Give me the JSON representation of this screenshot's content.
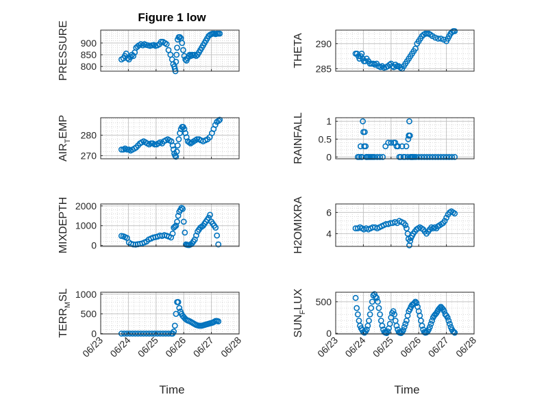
{
  "figure": {
    "title": "Figure 1 low",
    "xlabel": "Time",
    "x_tick_labels": [
      "06/23",
      "06/24",
      "06/25",
      "06/26",
      "06/27",
      "06/28"
    ],
    "marker_color": "#0072BD",
    "grid_color": "#d0d0d0"
  },
  "chart_data": [
    {
      "type": "scatter",
      "name": "PRESSURE",
      "ylabel": "PRESSURE",
      "xlim": [
        0,
        5
      ],
      "ylim": [
        780,
        955
      ],
      "yticks": [
        800,
        850,
        900
      ],
      "title": "Figure 1 low",
      "x": [
        0.75,
        0.82,
        0.87,
        0.92,
        0.97,
        1.02,
        1.08,
        1.13,
        1.18,
        1.23,
        1.28,
        1.33,
        1.38,
        1.45,
        1.52,
        1.58,
        1.65,
        1.72,
        1.78,
        1.85,
        1.92,
        1.98,
        2.05,
        2.12,
        2.18,
        2.25,
        2.32,
        2.38,
        2.45,
        2.52,
        2.58,
        2.62,
        2.66,
        2.68,
        2.7,
        2.72,
        2.74,
        2.76,
        2.78,
        2.82,
        2.86,
        2.9,
        2.94,
        2.98,
        3.02,
        3.06,
        3.1,
        3.14,
        3.18,
        3.22,
        3.26,
        3.3,
        3.35,
        3.4,
        3.45,
        3.5,
        3.55,
        3.6,
        3.65,
        3.7,
        3.75,
        3.8,
        3.85,
        3.9,
        3.95,
        4.0,
        4.05,
        4.1,
        4.15,
        4.2,
        4.25,
        4.3
      ],
      "y": [
        830,
        835,
        845,
        855,
        835,
        830,
        840,
        850,
        845,
        860,
        880,
        885,
        890,
        895,
        890,
        895,
        892,
        890,
        888,
        890,
        892,
        888,
        890,
        895,
        905,
        905,
        900,
        895,
        870,
        850,
        830,
        810,
        800,
        790,
        780,
        820,
        850,
        880,
        915,
        925,
        925,
        920,
        900,
        870,
        845,
        830,
        825,
        835,
        845,
        850,
        845,
        850,
        848,
        850,
        845,
        850,
        860,
        870,
        880,
        890,
        900,
        910,
        920,
        930,
        935,
        938,
        940,
        940,
        938,
        940,
        940,
        940
      ]
    },
    {
      "type": "scatter",
      "name": "THETA",
      "ylabel": "THETA",
      "xlim": [
        0,
        5
      ],
      "ylim": [
        284.5,
        292.7
      ],
      "yticks": [
        285,
        290
      ],
      "x": [
        0.72,
        0.77,
        0.82,
        0.86,
        0.9,
        0.94,
        0.98,
        1.02,
        1.07,
        1.12,
        1.18,
        1.24,
        1.3,
        1.36,
        1.42,
        1.48,
        1.55,
        1.62,
        1.68,
        1.75,
        1.82,
        1.88,
        1.95,
        2.0,
        2.05,
        2.1,
        2.16,
        2.22,
        2.28,
        2.34,
        2.4,
        2.46,
        2.52,
        2.58,
        2.64,
        2.7,
        2.76,
        2.82,
        2.88,
        2.94,
        3.0,
        3.06,
        3.12,
        3.18,
        3.24,
        3.3,
        3.36,
        3.42,
        3.5,
        3.6,
        3.7,
        3.8,
        3.9,
        4.0,
        4.05,
        4.1,
        4.15,
        4.2,
        4.25,
        4.3
      ],
      "y": [
        288,
        288,
        287.5,
        287,
        287.5,
        288,
        287,
        286.5,
        286.5,
        287,
        286.5,
        286,
        286,
        286,
        285.8,
        286,
        285.5,
        285.3,
        285.5,
        285.2,
        285.3,
        285.5,
        285.8,
        286,
        285.5,
        285.3,
        285.8,
        285.5,
        285.5,
        285.2,
        285,
        285.5,
        286,
        286.5,
        287,
        287.5,
        288,
        288.5,
        289,
        290,
        290.5,
        291,
        291.5,
        291.8,
        292,
        292,
        292,
        291.8,
        291.5,
        291.2,
        291,
        291,
        290.8,
        290.5,
        291,
        291.5,
        292,
        292.3,
        292.5,
        292.5
      ]
    },
    {
      "type": "scatter",
      "name": "AIR_TEMP",
      "ylabel": "AIR_TEMP",
      "xlim": [
        0,
        5
      ],
      "ylim": [
        268.5,
        288.5
      ],
      "yticks": [
        270,
        280
      ],
      "x": [
        0.75,
        0.82,
        0.88,
        0.95,
        1.02,
        1.08,
        1.15,
        1.22,
        1.28,
        1.35,
        1.42,
        1.48,
        1.55,
        1.62,
        1.68,
        1.75,
        1.82,
        1.88,
        1.95,
        2.02,
        2.08,
        2.15,
        2.22,
        2.28,
        2.35,
        2.42,
        2.48,
        2.55,
        2.6,
        2.63,
        2.66,
        2.69,
        2.72,
        2.75,
        2.78,
        2.82,
        2.86,
        2.9,
        2.94,
        2.98,
        3.02,
        3.06,
        3.1,
        3.15,
        3.2,
        3.25,
        3.3,
        3.36,
        3.42,
        3.48,
        3.55,
        3.62,
        3.7,
        3.78,
        3.86,
        3.94,
        4.02,
        4.08,
        4.14,
        4.2,
        4.26,
        4.3
      ],
      "y": [
        273,
        273,
        273.5,
        273,
        273,
        272.5,
        273,
        273.5,
        274,
        275,
        276,
        276.5,
        277,
        276.5,
        276,
        275.5,
        276,
        276,
        275.5,
        275.5,
        276,
        276.5,
        276,
        277,
        277.5,
        278,
        277.5,
        277,
        275,
        273,
        271,
        270,
        269.5,
        272,
        275,
        278,
        281,
        283,
        284,
        284,
        283,
        281,
        279,
        277,
        276.5,
        276,
        276.5,
        277,
        277.5,
        278,
        278,
        277.5,
        277,
        277.5,
        278,
        279,
        281,
        283,
        285,
        286.5,
        287,
        287.5
      ]
    },
    {
      "type": "scatter",
      "name": "RAINFALL",
      "ylabel": "RAINFALL",
      "xlim": [
        0,
        5
      ],
      "ylim": [
        -0.05,
        1.1
      ],
      "yticks": [
        0,
        0.5,
        1
      ],
      "x": [
        0.8,
        0.85,
        0.9,
        0.92,
        0.95,
        0.98,
        1.0,
        1.03,
        1.05,
        1.08,
        1.1,
        1.12,
        1.15,
        1.2,
        1.25,
        1.3,
        1.35,
        1.4,
        1.5,
        1.6,
        1.7,
        1.8,
        1.9,
        2.0,
        2.1,
        2.15,
        2.2,
        2.25,
        2.3,
        2.35,
        2.4,
        2.45,
        2.5,
        2.55,
        2.6,
        2.62,
        2.64,
        2.66,
        2.68,
        2.7,
        2.72,
        2.74,
        2.76,
        2.78,
        2.8,
        2.85,
        2.9,
        3.0,
        3.1,
        3.2,
        3.3,
        3.4,
        3.5,
        3.6,
        3.7,
        3.8,
        3.9,
        4.0,
        4.1,
        4.2,
        4.3
      ],
      "y": [
        0,
        0,
        0.3,
        0,
        0,
        1,
        0.7,
        0.3,
        0.7,
        0.3,
        0,
        0,
        0,
        0,
        0,
        0,
        0,
        0,
        0,
        0,
        0,
        0.3,
        0.4,
        0.4,
        0.4,
        0.4,
        0.3,
        0.3,
        0,
        0,
        0.3,
        0,
        0,
        0.3,
        0,
        0.5,
        0.6,
        1,
        0.6,
        0,
        0,
        0,
        0,
        0,
        0,
        0,
        0,
        0,
        0,
        0,
        0,
        0,
        0,
        0,
        0,
        0,
        0,
        0,
        0,
        0,
        0
      ]
    },
    {
      "type": "scatter",
      "name": "MIXDEPTH",
      "ylabel": "MIXDEPTH",
      "xlim": [
        0,
        5
      ],
      "ylim": [
        -50,
        2100
      ],
      "yticks": [
        0,
        1000,
        2000
      ],
      "x": [
        0.75,
        0.82,
        0.88,
        0.95,
        1.02,
        1.1,
        1.18,
        1.26,
        1.34,
        1.42,
        1.5,
        1.58,
        1.66,
        1.74,
        1.82,
        1.9,
        1.98,
        2.06,
        2.14,
        2.22,
        2.3,
        2.38,
        2.46,
        2.54,
        2.6,
        2.64,
        2.68,
        2.72,
        2.76,
        2.8,
        2.84,
        2.88,
        2.92,
        2.96,
        3.0,
        3.04,
        3.08,
        3.12,
        3.16,
        3.2,
        3.25,
        3.3,
        3.35,
        3.4,
        3.45,
        3.5,
        3.55,
        3.6,
        3.65,
        3.7,
        3.75,
        3.8,
        3.85,
        3.9,
        3.95,
        4.0,
        4.05,
        4.1,
        4.15,
        4.2,
        4.25
      ],
      "y": [
        480,
        460,
        420,
        380,
        150,
        80,
        50,
        40,
        60,
        80,
        100,
        150,
        200,
        300,
        350,
        400,
        420,
        450,
        500,
        480,
        520,
        490,
        450,
        400,
        600,
        900,
        950,
        1000,
        1200,
        1500,
        1700,
        1800,
        1900,
        1850,
        1200,
        650,
        50,
        30,
        20,
        20,
        50,
        100,
        200,
        300,
        500,
        700,
        800,
        900,
        950,
        1000,
        1100,
        1200,
        1300,
        1400,
        1550,
        1200,
        1100,
        1000,
        900,
        500,
        50
      ]
    },
    {
      "type": "scatter",
      "name": "H2OMIXRA",
      "ylabel": "H2OMIXRA",
      "xlim": [
        0,
        5
      ],
      "ylim": [
        2.8,
        6.8
      ],
      "yticks": [
        4,
        6
      ],
      "x": [
        0.72,
        0.8,
        0.88,
        0.95,
        1.02,
        1.1,
        1.18,
        1.26,
        1.34,
        1.42,
        1.5,
        1.58,
        1.66,
        1.74,
        1.82,
        1.9,
        1.98,
        2.06,
        2.14,
        2.22,
        2.3,
        2.38,
        2.46,
        2.52,
        2.56,
        2.6,
        2.63,
        2.66,
        2.69,
        2.72,
        2.76,
        2.8,
        2.86,
        2.92,
        2.98,
        3.04,
        3.1,
        3.16,
        3.22,
        3.28,
        3.34,
        3.4,
        3.46,
        3.52,
        3.58,
        3.64,
        3.7,
        3.76,
        3.82,
        3.88,
        3.94,
        4.0,
        4.06,
        4.12,
        4.18,
        4.24,
        4.3
      ],
      "y": [
        4.5,
        4.5,
        4.6,
        4.5,
        4.4,
        4.5,
        4.4,
        4.5,
        4.6,
        4.6,
        4.5,
        4.6,
        4.7,
        4.8,
        4.9,
        4.9,
        5.0,
        5.0,
        5.1,
        5.0,
        5.2,
        5.1,
        5.0,
        4.8,
        4.5,
        4.0,
        3.5,
        2.9,
        3.3,
        3.6,
        3.8,
        4.0,
        4.2,
        4.4,
        4.5,
        4.6,
        4.5,
        4.4,
        4.2,
        4.0,
        4.2,
        4.4,
        4.6,
        4.5,
        4.6,
        4.5,
        4.7,
        4.8,
        4.9,
        5.0,
        5.2,
        5.5,
        5.8,
        6.0,
        6.1,
        6.0,
        5.9
      ]
    },
    {
      "type": "scatter",
      "name": "TERR_MSL",
      "ylabel": "TERR_MSL",
      "xlim": [
        0,
        5
      ],
      "ylim": [
        -10,
        1050
      ],
      "yticks": [
        0,
        500,
        1000
      ],
      "x": [
        0.75,
        0.85,
        0.95,
        1.05,
        1.15,
        1.25,
        1.35,
        1.45,
        1.55,
        1.65,
        1.75,
        1.85,
        1.95,
        2.05,
        2.15,
        2.25,
        2.35,
        2.45,
        2.55,
        2.6,
        2.64,
        2.68,
        2.72,
        2.76,
        2.8,
        2.84,
        2.88,
        2.92,
        2.96,
        3.0,
        3.05,
        3.1,
        3.15,
        3.2,
        3.25,
        3.3,
        3.35,
        3.4,
        3.45,
        3.5,
        3.55,
        3.6,
        3.65,
        3.7,
        3.75,
        3.8,
        3.85,
        3.9,
        3.95,
        4.0,
        4.05,
        4.1,
        4.15,
        4.2,
        4.25
      ],
      "y": [
        0,
        0,
        0,
        0,
        0,
        0,
        0,
        0,
        0,
        0,
        0,
        0,
        0,
        0,
        0,
        0,
        0,
        0,
        0,
        0,
        50,
        200,
        500,
        800,
        800,
        650,
        560,
        500,
        450,
        420,
        380,
        350,
        330,
        320,
        300,
        280,
        260,
        240,
        220,
        210,
        200,
        200,
        200,
        210,
        220,
        230,
        240,
        250,
        260,
        270,
        280,
        300,
        320,
        320,
        310
      ]
    },
    {
      "type": "scatter",
      "name": "SUN_FLUX",
      "ylabel": "SUN_FLUX",
      "xlim": [
        0,
        5
      ],
      "ylim": [
        -10,
        650
      ],
      "yticks": [
        0,
        500
      ],
      "x": [
        0.72,
        0.76,
        0.8,
        0.84,
        0.88,
        0.92,
        0.96,
        1.0,
        1.04,
        1.08,
        1.12,
        1.16,
        1.2,
        1.24,
        1.28,
        1.32,
        1.36,
        1.4,
        1.44,
        1.48,
        1.52,
        1.56,
        1.6,
        1.64,
        1.68,
        1.72,
        1.76,
        1.8,
        1.84,
        1.88,
        1.92,
        1.96,
        2.0,
        2.04,
        2.08,
        2.12,
        2.16,
        2.2,
        2.24,
        2.28,
        2.32,
        2.36,
        2.4,
        2.44,
        2.48,
        2.52,
        2.56,
        2.6,
        2.64,
        2.68,
        2.72,
        2.76,
        2.8,
        2.84,
        2.88,
        2.92,
        2.96,
        3.0,
        3.04,
        3.08,
        3.12,
        3.16,
        3.2,
        3.24,
        3.28,
        3.32,
        3.36,
        3.4,
        3.44,
        3.48,
        3.52,
        3.56,
        3.6,
        3.64,
        3.68,
        3.72,
        3.76,
        3.8,
        3.84,
        3.88,
        3.92,
        3.96,
        4.0,
        4.04,
        4.08,
        4.12,
        4.16,
        4.2,
        4.24,
        4.28,
        4.3
      ],
      "y": [
        560,
        400,
        300,
        200,
        120,
        80,
        50,
        20,
        10,
        30,
        60,
        120,
        200,
        300,
        400,
        500,
        600,
        620,
        580,
        560,
        500,
        400,
        300,
        200,
        120,
        60,
        20,
        10,
        5,
        30,
        80,
        150,
        250,
        320,
        350,
        300,
        200,
        120,
        60,
        20,
        10,
        5,
        20,
        50,
        100,
        150,
        200,
        280,
        350,
        380,
        420,
        450,
        460,
        480,
        500,
        480,
        420,
        350,
        280,
        200,
        120,
        60,
        20,
        10,
        15,
        30,
        60,
        100,
        150,
        200,
        250,
        280,
        300,
        320,
        350,
        380,
        400,
        420,
        400,
        380,
        350,
        300,
        280,
        250,
        200,
        150,
        100,
        60,
        30,
        20,
        10
      ]
    }
  ]
}
